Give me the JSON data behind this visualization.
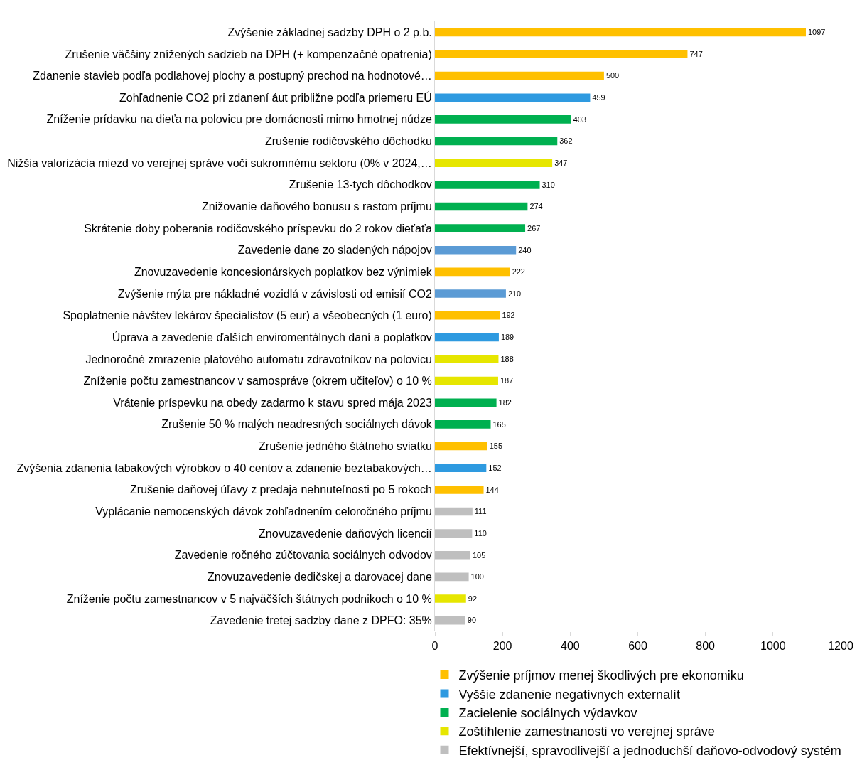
{
  "chart_data": {
    "type": "bar",
    "orientation": "horizontal",
    "categories": [
      "Zvýšenie základnej sadzby DPH o 2 p.b.",
      "Zrušenie väčšiny znížených sadzieb na DPH (+ kompenzačné opatrenia)",
      "Zdanenie stavieb podľa podlahovej plochy a postupný prechod na hodnotové…",
      "Zohľadnenie CO2 pri zdanení áut približne podľa priemeru EÚ",
      "Zníženie prídavku na dieťa na polovicu pre domácnosti mimo hmotnej núdze",
      "Zrušenie rodičovského dôchodku",
      "Nižšia valorizácia miezd vo verejnej správe voči sukromnému sektoru (0% v 2024,…",
      "Zrušenie 13-tych dôchodkov",
      "Znižovanie daňového bonusu s rastom príjmu",
      "Skrátenie doby poberania rodičovského príspevku do 2 rokov dieťaťa",
      "Zavedenie dane zo sladených nápojov",
      "Znovuzavedenie koncesionárskych poplatkov bez výnimiek",
      "Zvýšenie mýta pre nákladné vozidlá v závislosti od emisií CO2",
      "Spoplatnenie návštev lekárov špecialistov (5 eur) a všeobecných (1 euro)",
      "Úprava a zavedenie ďalších enviromentálnych daní a poplatkov",
      "Jednoročné zmrazenie platového automatu zdravotníkov na polovicu",
      "Zníženie počtu zamestnancov v samospráve (okrem učiteľov) o 10 %",
      "Vrátenie príspevku na obedy zadarmo k stavu spred mája 2023",
      "Zrušenie 50 % malých neadresných sociálnych dávok",
      "Zrušenie jedného štátneho sviatku",
      "Zvýšenia zdanenia tabakových výrobkov o 40 centov a zdanenie beztabakových…",
      "Zrušenie daňovej úľavy z predaja nehnuteľnosti po 5 rokoch",
      "Vyplácanie nemocenských dávok zohľadnením celoročného príjmu",
      "Znovuzavedenie daňových licencií",
      "Zavedenie ročného zúčtovania sociálnych odvodov",
      "Znovuzavedenie dedičskej a darovacej dane",
      "Zníženie počtu zamestnancov v 5 najväčších štátnych podnikoch o 10 %",
      "Zavedenie tretej sadzby dane z DPFO: 35%"
    ],
    "series": [
      {
        "name": "Zvýšenie príjmov menej škodlivých pre ekonomiku",
        "color": "#ffc000",
        "values": [
          1097,
          747,
          500,
          null,
          null,
          null,
          null,
          null,
          null,
          null,
          null,
          222,
          null,
          192,
          null,
          null,
          null,
          null,
          null,
          155,
          null,
          144,
          null,
          null,
          null,
          null,
          null,
          null
        ]
      },
      {
        "name": "Vyššie zdanenie negatívnych externalít",
        "color": "#2e9ae0",
        "colors": [
          null,
          null,
          null,
          "#2e9ae0",
          null,
          null,
          null,
          null,
          null,
          null,
          "#5b9bd5",
          null,
          "#5b9bd5",
          null,
          "#2e9ae0",
          null,
          null,
          null,
          null,
          null,
          "#2e9ae0",
          null,
          null,
          null,
          null,
          null,
          null,
          null
        ],
        "values": [
          null,
          null,
          null,
          459,
          null,
          null,
          null,
          null,
          null,
          null,
          240,
          null,
          210,
          null,
          189,
          null,
          null,
          null,
          null,
          null,
          152,
          null,
          null,
          null,
          null,
          null,
          null,
          null
        ]
      },
      {
        "name": "Zacielenie sociálnych výdavkov",
        "color": "#00b050",
        "values": [
          null,
          null,
          null,
          null,
          403,
          362,
          null,
          310,
          274,
          267,
          null,
          null,
          null,
          null,
          null,
          null,
          null,
          182,
          165,
          null,
          null,
          null,
          null,
          null,
          null,
          null,
          null,
          null
        ]
      },
      {
        "name": "Zoštíhlenie zamestnanosti vo verejnej správe",
        "color": "#e6e600",
        "values": [
          null,
          null,
          null,
          null,
          null,
          null,
          347,
          null,
          null,
          null,
          null,
          null,
          null,
          null,
          null,
          188,
          187,
          null,
          null,
          null,
          null,
          null,
          null,
          null,
          null,
          null,
          92,
          null
        ]
      },
      {
        "name": "Efektívnejší, spravodlivejší a jednoduchší daňovo-odvodový systém",
        "color": "#bfbfbf",
        "values": [
          null,
          null,
          null,
          null,
          null,
          null,
          null,
          null,
          null,
          null,
          null,
          null,
          null,
          null,
          null,
          null,
          null,
          null,
          null,
          null,
          null,
          null,
          111,
          110,
          105,
          100,
          null,
          90
        ]
      }
    ],
    "xlim": [
      0,
      1200
    ],
    "xticks": [
      0,
      200,
      400,
      600,
      800,
      1000,
      1200
    ],
    "data_labels": true,
    "legend": "bottom"
  }
}
